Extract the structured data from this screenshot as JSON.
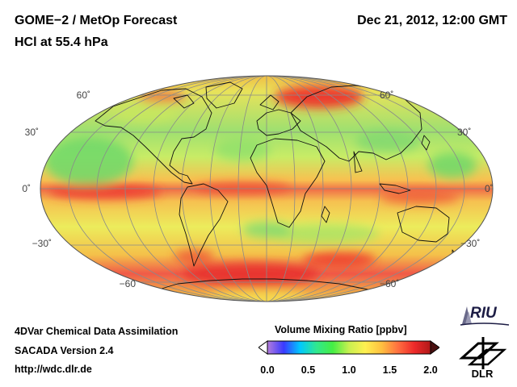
{
  "header": {
    "title_line1": "GOME−2 / MetOp Forecast",
    "title_line2": "HCl at 55.4 hPa",
    "datetime": "Dec 21, 2012, 12:00 GMT"
  },
  "map": {
    "projection": "Hammer",
    "lat_labels": [
      "60˚",
      "30˚",
      "0˚",
      "−30˚",
      "−60"
    ],
    "lat_labels_right": [
      "60˚",
      "30˚",
      "0˚",
      "−30˚",
      "−60˚"
    ]
  },
  "footer": {
    "line1": "4DVar Chemical Data Assimilation",
    "line2": "SACADA Version 2.4",
    "line3": "http://wdc.dlr.de"
  },
  "colorbar": {
    "title": "Volume Mixing Ratio [ppbv]",
    "ticks": [
      "0.0",
      "0.5",
      "1.0",
      "1.5",
      "2.0"
    ],
    "range": [
      0.0,
      2.0
    ],
    "colors": [
      "#ffffff",
      "#b47cdc",
      "#3a3aff",
      "#00c8ff",
      "#30e890",
      "#44ee44",
      "#c8f050",
      "#fff050",
      "#ffc040",
      "#ff7040",
      "#ee2a2a",
      "#b01818",
      "#4a1010"
    ]
  },
  "logos": {
    "riu": "RIU",
    "dlr": "DLR"
  }
}
